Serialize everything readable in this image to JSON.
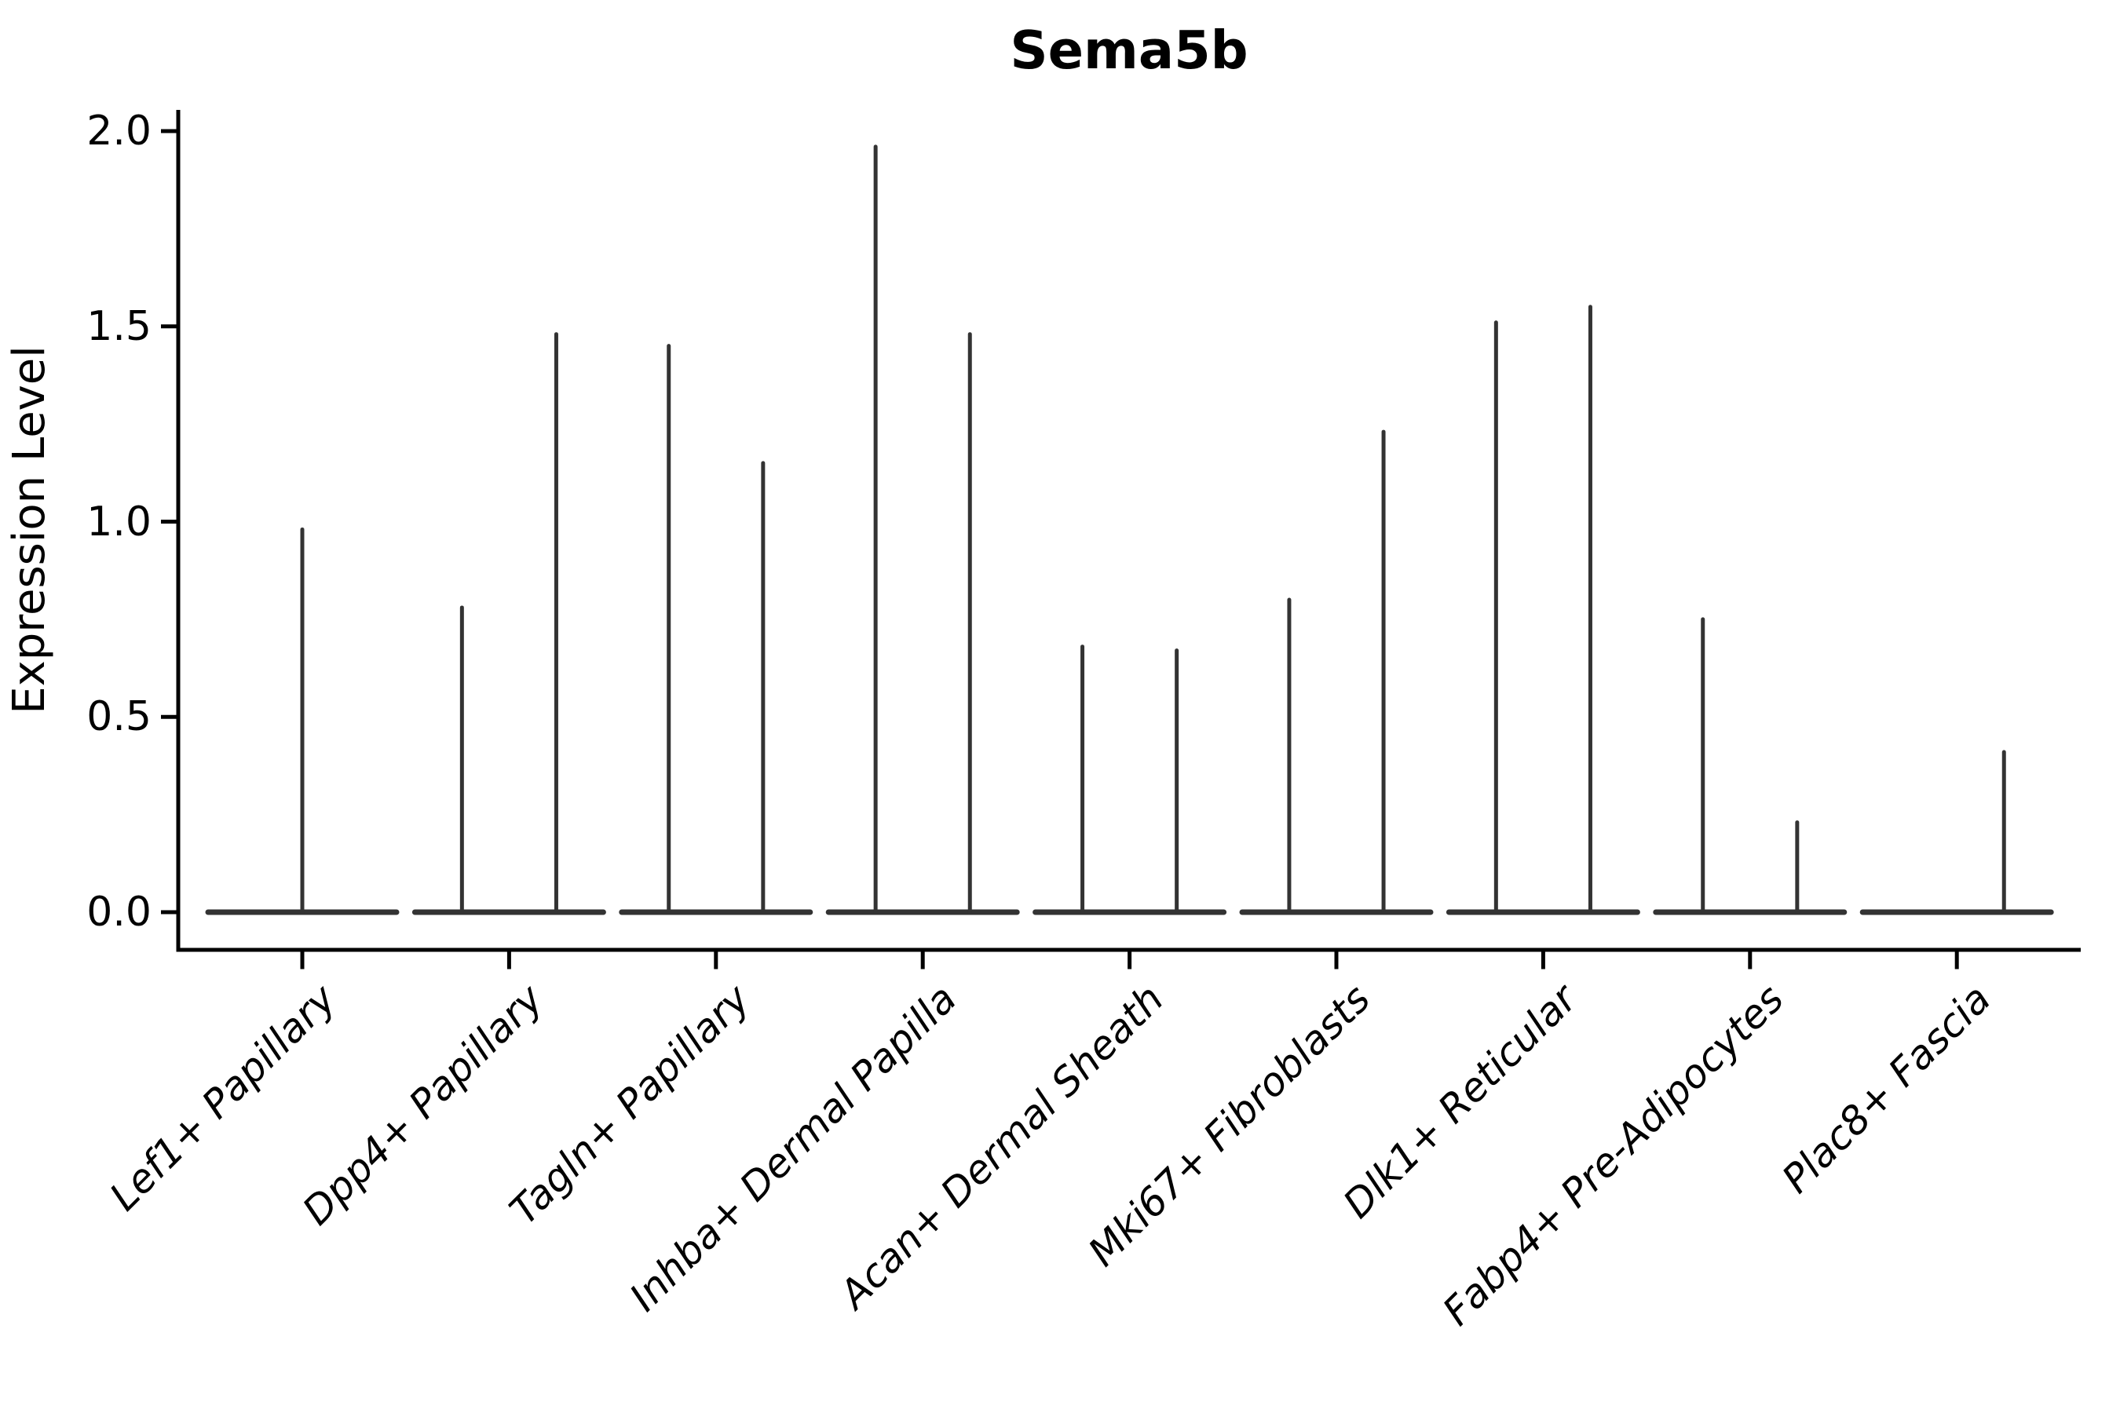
{
  "chart_data": {
    "type": "violin",
    "title": "Sema5b",
    "ylabel": "Expression Level",
    "xlabel": "",
    "ylim": [
      -0.1,
      2.06
    ],
    "grid": false,
    "legend": "none",
    "yticks": [
      {
        "value": 0.0,
        "label": "0.0"
      },
      {
        "value": 0.5,
        "label": "0.5"
      },
      {
        "value": 1.0,
        "label": "1.0"
      },
      {
        "value": 1.5,
        "label": "1.5"
      },
      {
        "value": 2.0,
        "label": "2.0"
      }
    ],
    "categories": [
      {
        "label": "Lef1+ Papillary",
        "violins": [
          {
            "side": "full",
            "max_expression": 0.98
          }
        ]
      },
      {
        "label": "Dpp4+ Papillary",
        "violins": [
          {
            "side": "left",
            "max_expression": 0.78
          },
          {
            "side": "right",
            "max_expression": 1.48
          }
        ]
      },
      {
        "label": "Tagln+ Papillary",
        "violins": [
          {
            "side": "left",
            "max_expression": 1.45
          },
          {
            "side": "right",
            "max_expression": 1.15
          }
        ]
      },
      {
        "label": "Inhba+ Dermal Papilla",
        "violins": [
          {
            "side": "left",
            "max_expression": 1.96
          },
          {
            "side": "right",
            "max_expression": 1.48
          }
        ]
      },
      {
        "label": "Acan+ Dermal Sheath",
        "violins": [
          {
            "side": "left",
            "max_expression": 0.68
          },
          {
            "side": "right",
            "max_expression": 0.67
          }
        ]
      },
      {
        "label": "Mki67+ Fibroblasts",
        "violins": [
          {
            "side": "left",
            "max_expression": 0.8
          },
          {
            "side": "right",
            "max_expression": 1.23
          }
        ]
      },
      {
        "label": "Dlk1+ Reticular",
        "violins": [
          {
            "side": "left",
            "max_expression": 1.51
          },
          {
            "side": "right",
            "max_expression": 1.55
          }
        ]
      },
      {
        "label": "Fabp4+ Pre-Adipocytes",
        "violins": [
          {
            "side": "left",
            "max_expression": 0.75
          },
          {
            "side": "right",
            "max_expression": 0.23
          }
        ]
      },
      {
        "label": "Plac8+ Fascia",
        "violins": [
          {
            "side": "right",
            "max_expression": 0.41
          }
        ]
      }
    ],
    "colors": {
      "violin_line": "#333333",
      "axis": "#000000",
      "text": "#000000",
      "background": "#ffffff"
    }
  }
}
